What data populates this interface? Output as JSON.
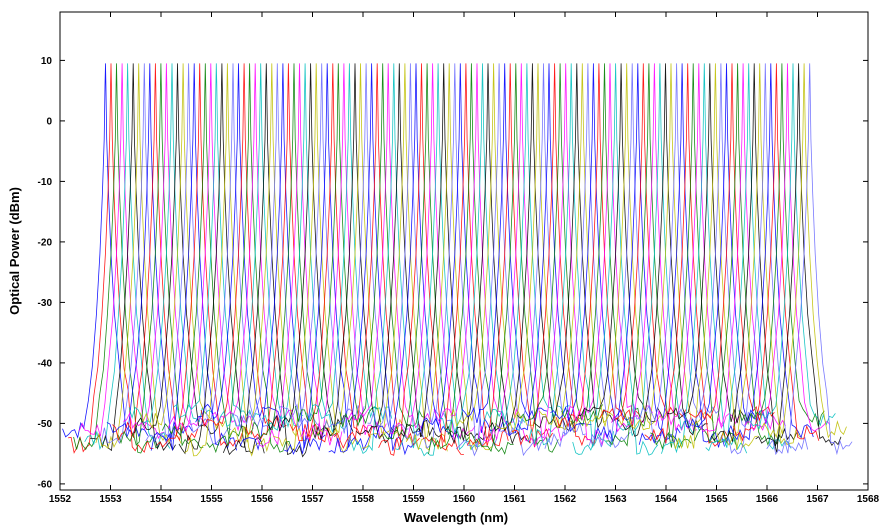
{
  "chart_data": {
    "type": "line",
    "title": "",
    "xlabel": "Wavelength (nm)",
    "ylabel": "Optical Power (dBm)",
    "xlim": [
      1552,
      1568
    ],
    "ylim": [
      -61,
      18
    ],
    "x_ticks": [
      1552,
      1553,
      1554,
      1555,
      1556,
      1557,
      1558,
      1559,
      1560,
      1561,
      1562,
      1563,
      1564,
      1565,
      1566,
      1567,
      1568
    ],
    "y_ticks": [
      -60,
      -50,
      -40,
      -30,
      -20,
      -10,
      0,
      10
    ],
    "x_tick_labels": [
      "1552",
      "1553",
      "1554",
      "1555",
      "1556",
      "1557",
      "1558",
      "1559",
      "1560",
      "1561",
      "1562",
      "1563",
      "1564",
      "1565",
      "1566",
      "1567",
      "1568"
    ],
    "y_tick_labels": [
      "-60",
      "-50",
      "-40",
      "-30",
      "-20",
      "-10",
      "0",
      "10"
    ],
    "grid": false,
    "legend": "none",
    "series_colors": [
      "#0000ff",
      "#ff0000",
      "#008000",
      "#ff00ff",
      "#00bfbf",
      "#000000",
      "#bfbf00",
      "#6a6aff"
    ],
    "channels": {
      "count": 128,
      "first_peak_nm": 1552.9,
      "spacing_nm": 0.1098,
      "peak_dBm": 9.5,
      "floor_dBm": [
        -54,
        -48
      ],
      "side_ripple_dBm": -42,
      "mid_level_dBm": -7.5
    }
  }
}
